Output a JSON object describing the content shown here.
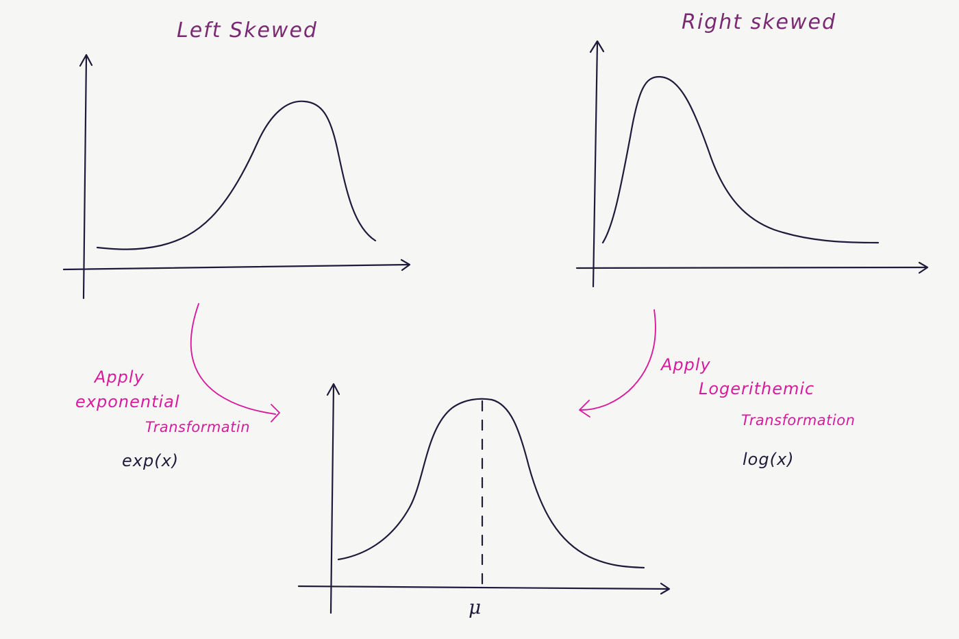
{
  "diagram": {
    "left_panel": {
      "title": "Left Skewed"
    },
    "right_panel": {
      "title": "Right skewed"
    },
    "left_transform": {
      "line1": "Apply",
      "line2": "exponential",
      "line3": "Transformatin",
      "formula": "exp(x)"
    },
    "right_transform": {
      "line1": "Apply",
      "line2": "Logerithemic",
      "line3": "Transformation",
      "formula": "log(x)"
    },
    "bottom_panel": {
      "mean_label": "μ"
    },
    "colors": {
      "ink": "#1f1a3a",
      "title": "#7a2a72",
      "annotation": "#d81b9c"
    }
  }
}
